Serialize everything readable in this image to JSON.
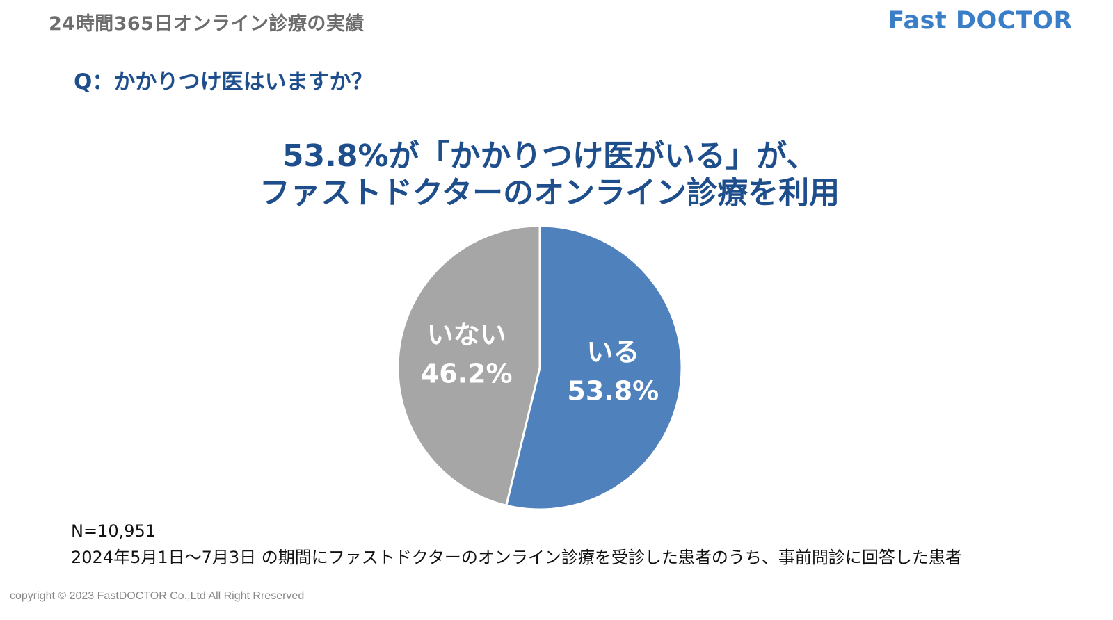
{
  "header": {
    "title": "24時間365日オンライン診療の実績",
    "logo": "Fast DOCTOR"
  },
  "question": "Q：かかりつけ医はいますか？",
  "headline": {
    "line1": "53.8%が「かかりつけ医がいる」が、",
    "line2": "ファストドクターのオンライン診療を利用"
  },
  "chart_data": {
    "type": "pie",
    "slices": [
      {
        "label": "いる",
        "value": 53.8,
        "display": "53.8%",
        "color": "#4f81bd"
      },
      {
        "label": "いない",
        "value": 46.2,
        "display": "46.2%",
        "color": "#a6a6a6"
      }
    ],
    "start": "12 o'clock",
    "direction": "clockwise",
    "slice_labels_color": "#ffffff"
  },
  "footnote": {
    "n": "N=10,951",
    "period": "2024年5月1日～7月3日 の期間にファストドクターのオンライン診療を受診した患者のうち、事前問診に回答した患者"
  },
  "copyright": "copyright © 2023 FastDOCTOR Co.,Ltd All Right Rreserved"
}
